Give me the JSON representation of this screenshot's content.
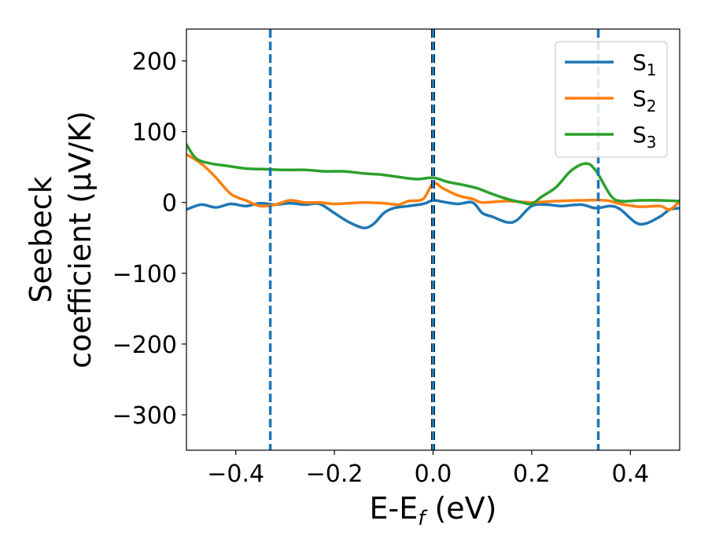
{
  "chart_data": {
    "type": "line",
    "xlabel_main": "E-E",
    "xlabel_sub": "f",
    "xlabel_unit": " (eV)",
    "ylabel_line1": "Seebeck",
    "ylabel_line2": "coefficient  (μV/K)",
    "xlim": [
      -0.5,
      0.5
    ],
    "ylim": [
      -350,
      245
    ],
    "xticks": [
      -0.4,
      -0.2,
      0.0,
      0.2,
      0.4
    ],
    "xtick_labels": [
      "−0.4",
      "−0.2",
      "0.0",
      "0.2",
      "0.4"
    ],
    "yticks": [
      200,
      100,
      0,
      -100,
      -200,
      -300
    ],
    "ytick_labels": [
      "200",
      "100",
      "0",
      "−100",
      "−200",
      "−300"
    ],
    "legend_position": "top-right",
    "vlines": [
      {
        "x": -0.33,
        "color": "#1f77b4",
        "style": "dashed"
      },
      {
        "x": 0.0,
        "color": "#000000",
        "style": "dashed"
      },
      {
        "x": 0.0,
        "color": "#1f77b4",
        "style": "dashed"
      },
      {
        "x": 0.335,
        "color": "#1f77b4",
        "style": "dashed"
      }
    ],
    "series": [
      {
        "name": "S",
        "sub": "1",
        "color": "#1f77b4",
        "x": [
          -0.5,
          -0.47,
          -0.44,
          -0.41,
          -0.38,
          -0.35,
          -0.32,
          -0.29,
          -0.26,
          -0.23,
          -0.2,
          -0.17,
          -0.14,
          -0.12,
          -0.1,
          -0.08,
          -0.05,
          -0.02,
          0.0,
          0.02,
          0.05,
          0.08,
          0.1,
          0.12,
          0.15,
          0.17,
          0.2,
          0.23,
          0.26,
          0.3,
          0.33,
          0.36,
          0.38,
          0.41,
          0.43,
          0.46,
          0.48,
          0.5
        ],
        "y": [
          -10,
          -3,
          -7,
          -2,
          -5,
          -1,
          -3,
          -1,
          -3,
          -2,
          -15,
          -28,
          -36,
          -30,
          -15,
          -8,
          -5,
          -2,
          3,
          1,
          -2,
          0,
          -15,
          -20,
          -28,
          -25,
          -5,
          -3,
          -5,
          -3,
          -8,
          -5,
          -10,
          -28,
          -30,
          -20,
          -10,
          -8
        ]
      },
      {
        "name": "S",
        "sub": "2",
        "color": "#ff7f0e",
        "x": [
          -0.5,
          -0.47,
          -0.44,
          -0.41,
          -0.38,
          -0.35,
          -0.32,
          -0.29,
          -0.26,
          -0.23,
          -0.2,
          -0.17,
          -0.14,
          -0.1,
          -0.07,
          -0.05,
          -0.02,
          0.0,
          0.02,
          0.05,
          0.08,
          0.1,
          0.15,
          0.2,
          0.25,
          0.3,
          0.35,
          0.38,
          0.42,
          0.46,
          0.48,
          0.5
        ],
        "y": [
          68,
          55,
          35,
          12,
          3,
          -5,
          -3,
          3,
          0,
          0,
          -2,
          -1,
          0,
          -1,
          -3,
          2,
          5,
          27,
          20,
          10,
          5,
          0,
          2,
          0,
          2,
          3,
          3,
          -2,
          -6,
          -5,
          -10,
          2
        ]
      },
      {
        "name": "S",
        "sub": "3",
        "color": "#2ca02c",
        "x": [
          -0.5,
          -0.48,
          -0.45,
          -0.42,
          -0.38,
          -0.34,
          -0.3,
          -0.26,
          -0.22,
          -0.18,
          -0.14,
          -0.1,
          -0.06,
          -0.03,
          0.0,
          0.03,
          0.06,
          0.09,
          0.12,
          0.15,
          0.18,
          0.2,
          0.22,
          0.25,
          0.28,
          0.31,
          0.33,
          0.36,
          0.38,
          0.42,
          0.46,
          0.5
        ],
        "y": [
          82,
          62,
          55,
          52,
          48,
          47,
          46,
          46,
          44,
          44,
          41,
          39,
          35,
          33,
          35,
          29,
          25,
          20,
          12,
          5,
          0,
          -2,
          8,
          22,
          45,
          55,
          45,
          10,
          2,
          3,
          3,
          2
        ]
      }
    ]
  }
}
